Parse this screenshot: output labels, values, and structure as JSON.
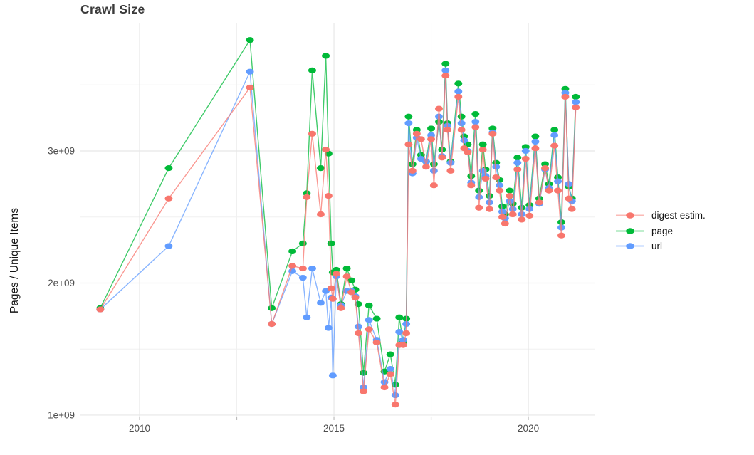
{
  "page": {
    "title": "Crawl Size"
  },
  "chart_data": {
    "type": "line",
    "title": "Crawl Size",
    "xlabel": "",
    "ylabel": "Pages / Unique Items",
    "values_unit": "1e+09 (billions)",
    "x_range": [
      2008.48,
      2021.72
    ],
    "y_range": [
      0.989,
      3.965
    ],
    "grid": true,
    "legend_position": "right-center",
    "x_ticks": {
      "major": [
        2010,
        2015,
        2020
      ],
      "minor": [
        2012.5,
        2017.5
      ],
      "major_labels": [
        "2010",
        "2015",
        "2020"
      ]
    },
    "y_ticks": {
      "major": [
        1,
        2,
        3
      ],
      "minor": [
        1.5,
        2.5,
        3.5
      ],
      "major_labels": [
        "1e+09",
        "2e+09",
        "3e+09"
      ]
    },
    "x": [
      2008.99,
      2010.75,
      2012.84,
      2013.4,
      2013.93,
      2014.2,
      2014.3,
      2014.44,
      2014.66,
      2014.79,
      2014.86,
      2014.93,
      2014.97,
      2015.06,
      2015.18,
      2015.33,
      2015.45,
      2015.55,
      2015.63,
      2015.76,
      2015.9,
      2016.1,
      2016.3,
      2016.45,
      2016.58,
      2016.68,
      2016.78,
      2016.86,
      2016.92,
      2017.02,
      2017.13,
      2017.24,
      2017.37,
      2017.5,
      2017.57,
      2017.7,
      2017.78,
      2017.87,
      2017.92,
      2018.0,
      2018.2,
      2018.28,
      2018.35,
      2018.44,
      2018.53,
      2018.64,
      2018.73,
      2018.83,
      2018.9,
      2019.0,
      2019.08,
      2019.17,
      2019.26,
      2019.33,
      2019.4,
      2019.52,
      2019.6,
      2019.72,
      2019.83,
      2019.93,
      2020.03,
      2020.18,
      2020.28,
      2020.43,
      2020.53,
      2020.67,
      2020.76,
      2020.85,
      2020.95,
      2021.04,
      2021.12,
      2021.22
    ],
    "series": [
      {
        "name": "digest estim.",
        "color": "#F8766D",
        "values": [
          1.8,
          2.64,
          3.48,
          1.69,
          2.13,
          2.11,
          2.65,
          3.13,
          2.52,
          3.01,
          2.66,
          1.96,
          1.88,
          2.07,
          1.81,
          2.05,
          1.93,
          1.89,
          1.62,
          1.18,
          1.65,
          1.55,
          1.21,
          1.31,
          1.08,
          1.53,
          1.53,
          1.62,
          3.05,
          2.85,
          3.13,
          3.09,
          2.88,
          3.09,
          2.74,
          3.32,
          2.95,
          3.57,
          3.16,
          2.85,
          3.41,
          3.16,
          3.02,
          2.99,
          2.74,
          3.18,
          2.57,
          3.01,
          2.79,
          2.56,
          3.13,
          2.8,
          2.7,
          2.5,
          2.45,
          2.66,
          2.52,
          2.86,
          2.48,
          2.94,
          2.51,
          3.02,
          2.61,
          2.87,
          2.7,
          3.04,
          2.7,
          2.36,
          3.41,
          2.64,
          2.56,
          3.33
        ]
      },
      {
        "name": "page",
        "color": "#00BA38",
        "values": [
          1.81,
          2.87,
          3.84,
          1.81,
          2.24,
          2.3,
          2.68,
          3.61,
          2.87,
          3.72,
          2.98,
          2.3,
          2.08,
          2.1,
          1.84,
          2.11,
          2.02,
          1.95,
          1.84,
          1.32,
          1.83,
          1.73,
          1.33,
          1.46,
          1.23,
          1.74,
          1.55,
          1.73,
          3.26,
          2.9,
          3.16,
          2.97,
          2.92,
          3.17,
          2.9,
          3.22,
          3.01,
          3.66,
          3.21,
          2.92,
          3.51,
          3.26,
          3.11,
          3.05,
          2.81,
          3.28,
          2.7,
          3.05,
          2.86,
          2.66,
          3.17,
          2.91,
          2.78,
          2.58,
          2.52,
          2.7,
          2.6,
          2.95,
          2.57,
          3.03,
          2.59,
          3.11,
          2.64,
          2.9,
          2.75,
          3.16,
          2.8,
          2.46,
          3.47,
          2.73,
          2.64,
          3.41
        ]
      },
      {
        "name": "url",
        "color": "#619CFF",
        "values": [
          1.8,
          2.28,
          3.6,
          1.69,
          2.09,
          2.04,
          1.74,
          2.11,
          1.85,
          1.94,
          1.66,
          1.89,
          1.3,
          2.05,
          1.83,
          1.94,
          1.94,
          1.9,
          1.67,
          1.21,
          1.72,
          1.57,
          1.25,
          1.35,
          1.15,
          1.63,
          1.57,
          1.69,
          3.21,
          2.83,
          3.1,
          2.94,
          2.92,
          3.12,
          2.85,
          3.26,
          2.96,
          3.61,
          3.19,
          2.91,
          3.45,
          3.21,
          3.08,
          3.0,
          2.76,
          3.22,
          2.65,
          2.85,
          2.81,
          2.61,
          3.14,
          2.88,
          2.74,
          2.54,
          2.49,
          2.62,
          2.56,
          2.91,
          2.52,
          3.0,
          2.56,
          3.07,
          2.6,
          2.86,
          2.72,
          3.12,
          2.77,
          2.42,
          3.44,
          2.75,
          2.62,
          3.37
        ]
      }
    ],
    "draw_order": [
      "page",
      "url",
      "digest estim."
    ]
  }
}
